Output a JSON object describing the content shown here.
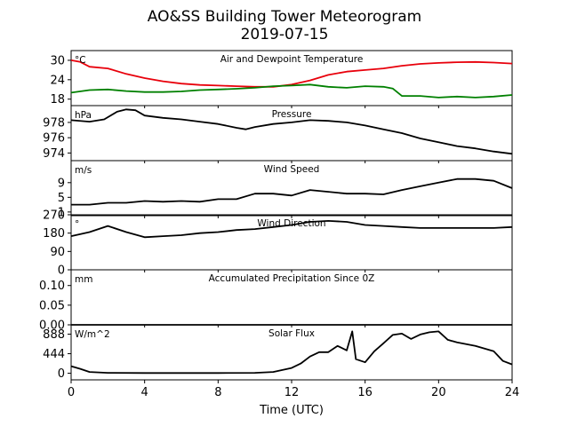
{
  "chart_data": {
    "type": "line",
    "title": "AO&SS Building Tower Meteorogram",
    "subtitle": "2019-07-15",
    "xlabel": "Time (UTC)",
    "xlim": [
      0,
      24
    ],
    "xticks": [
      0,
      4,
      8,
      12,
      16,
      20,
      24
    ],
    "colors": {
      "temperature": "#e8000b",
      "dewpoint": "#008000",
      "other": "#000000"
    },
    "panels": [
      {
        "title": "Air and Dewpoint Temperature",
        "unit": "°C",
        "ylim": [
          16,
          33
        ],
        "yticks": [
          18,
          24,
          30
        ],
        "series": [
          {
            "key": "temperature",
            "x": [
              0,
              0.5,
              1,
              2,
              3,
              4,
              5,
              6,
              7,
              8,
              9,
              10,
              11,
              12,
              13,
              14,
              15,
              16,
              17,
              18,
              19,
              20,
              21,
              22,
              23,
              24
            ],
            "values": [
              30,
              29.5,
              28,
              27.5,
              25.8,
              24.5,
              23.5,
              22.8,
              22.4,
              22.2,
              22,
              21.8,
              21.8,
              22.5,
              23.8,
              25.5,
              26.5,
              27,
              27.5,
              28.3,
              28.9,
              29.2,
              29.4,
              29.5,
              29.3,
              29
            ]
          },
          {
            "key": "dewpoint",
            "x": [
              0,
              1,
              2,
              3,
              4,
              5,
              6,
              7,
              8,
              9,
              10,
              11,
              12,
              13,
              14,
              15,
              16,
              17,
              17.5,
              18,
              19,
              20,
              21,
              22,
              23,
              24
            ],
            "values": [
              20,
              20.8,
              21,
              20.5,
              20.2,
              20.2,
              20.4,
              20.8,
              21,
              21.2,
              21.5,
              22,
              22.2,
              22.5,
              21.8,
              21.5,
              22,
              21.8,
              21.3,
              19,
              19,
              18.5,
              18.8,
              18.5,
              18.8,
              19.3
            ]
          }
        ]
      },
      {
        "title": "Pressure",
        "unit": "hPa",
        "ylim": [
          973,
          980.2
        ],
        "yticks": [
          974,
          976,
          978
        ],
        "series": [
          {
            "key": "other",
            "x": [
              0,
              1,
              1.8,
              2.5,
              3,
              3.5,
              4,
              5,
              6,
              7,
              8,
              9,
              9.5,
              10,
              11,
              12,
              13,
              14,
              15,
              16,
              17,
              18,
              19,
              20,
              21,
              22,
              23,
              24
            ],
            "values": [
              978.3,
              978.1,
              978.4,
              979.4,
              979.7,
              979.6,
              978.9,
              978.6,
              978.4,
              978.1,
              977.8,
              977.3,
              977.1,
              977.4,
              977.8,
              978,
              978.3,
              978.2,
              978,
              977.6,
              977.1,
              976.6,
              975.9,
              975.4,
              974.9,
              974.6,
              974.2,
              973.9
            ]
          }
        ]
      },
      {
        "title": "Wind Speed",
        "unit": "m/s",
        "ylim": [
          0,
          15
        ],
        "yticks": [
          1,
          5,
          9
        ],
        "series": [
          {
            "key": "other",
            "x": [
              0,
              1,
              2,
              3,
              4,
              5,
              6,
              7,
              8,
              9,
              10,
              11,
              12,
              13,
              14,
              15,
              16,
              17,
              18,
              19,
              20,
              21,
              22,
              23,
              24
            ],
            "values": [
              3,
              3,
              3.5,
              3.5,
              4,
              3.8,
              4,
              3.8,
              4.5,
              4.5,
              6,
              6,
              5.5,
              7,
              6.5,
              6,
              6,
              5.8,
              7,
              8,
              9,
              10,
              10,
              9.5,
              7.5
            ]
          }
        ]
      },
      {
        "title": "Wind Direction",
        "unit": "°",
        "ylim": [
          0,
          270
        ],
        "yticks": [
          0,
          90,
          180,
          270
        ],
        "series": [
          {
            "key": "other",
            "x": [
              0,
              1,
              2,
              3,
              4,
              5,
              6,
              7,
              8,
              9,
              10,
              11,
              12,
              13,
              14,
              15,
              16,
              17,
              18,
              19,
              20,
              21,
              22,
              23,
              24
            ],
            "values": [
              165,
              185,
              215,
              185,
              160,
              165,
              170,
              180,
              185,
              195,
              200,
              210,
              220,
              235,
              240,
              235,
              220,
              215,
              210,
              205,
              205,
              205,
              205,
              205,
              210
            ]
          }
        ]
      },
      {
        "title": "Accumulated Precipitation Since 0Z",
        "unit": "mm",
        "ylim": [
          0,
          0.14
        ],
        "yticks": [
          0.0,
          0.05,
          0.1
        ],
        "ytick_labels": [
          "0.00",
          "0.05",
          "0.10"
        ],
        "series": [
          {
            "key": "other",
            "x": [
              0,
              24
            ],
            "values": [
              0,
              0
            ]
          }
        ]
      },
      {
        "title": "Solar Flux",
        "unit": "W/m^2",
        "ylim": [
          -150,
          1100
        ],
        "yticks": [
          0,
          444,
          888
        ],
        "series": [
          {
            "key": "other",
            "x": [
              0,
              0.5,
              1,
              2,
              4,
              6,
              8,
              10,
              11,
              12,
              12.5,
              13,
              13.5,
              14,
              14.5,
              15,
              15.3,
              15.5,
              16,
              16.5,
              17,
              17.5,
              18,
              18.5,
              19,
              19.5,
              20,
              20.5,
              21,
              22,
              23,
              23.5,
              24
            ],
            "values": [
              160,
              100,
              30,
              10,
              5,
              5,
              5,
              10,
              30,
              120,
              220,
              380,
              480,
              480,
              620,
              520,
              950,
              320,
              250,
              500,
              680,
              870,
              900,
              780,
              880,
              930,
              950,
              760,
              700,
              620,
              500,
              280,
              200
            ]
          }
        ]
      }
    ]
  }
}
